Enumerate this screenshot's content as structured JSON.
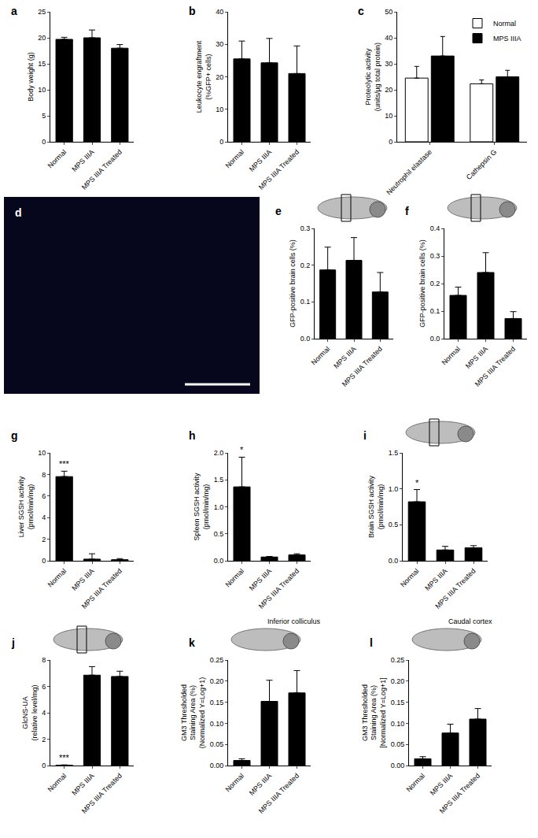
{
  "chart_data": [
    {
      "type": "bar",
      "title": "a",
      "categories": [
        "Normal",
        "MPS IIIA",
        "MPS IIIA Treated"
      ],
      "values": [
        19.7,
        20.0,
        18.0
      ],
      "errors": [
        0.4,
        1.5,
        0.7
      ],
      "color": "#000000",
      "y_label": "Body weight (g)",
      "ylim": [
        0,
        25
      ],
      "yticks": [
        0,
        5,
        10,
        15,
        20,
        25
      ],
      "grid": false
    },
    {
      "type": "bar",
      "title": "b",
      "categories": [
        "Normal",
        "MPS IIIA",
        "MPS IIIA Treated"
      ],
      "values": [
        25.5,
        24.3,
        21.0
      ],
      "errors": [
        5.5,
        7.5,
        8.5
      ],
      "color": "#000000",
      "y_label": "Leukocyte engraftment\n(%GFP+ cells)",
      "ylim": [
        0,
        40
      ],
      "yticks": [
        0,
        10,
        20,
        30,
        40
      ],
      "grid": false
    },
    {
      "type": "bar",
      "title": "c",
      "categories": [
        "Neutrophil elastase",
        "Cathepsin G"
      ],
      "series": [
        {
          "name": "Normal",
          "color": "#ffffff",
          "values": [
            24.5,
            22.3
          ],
          "errors": [
            4.5,
            1.5
          ]
        },
        {
          "name": "MPS IIIA",
          "color": "#000000",
          "values": [
            33.0,
            25.0
          ],
          "errors": [
            7.5,
            2.5
          ]
        }
      ],
      "y_label": "Proteolytic activity\n(units/µg total protein)",
      "ylim": [
        0,
        50
      ],
      "yticks": [
        0,
        10,
        20,
        30,
        40,
        50
      ],
      "legend": "top right",
      "grid": false
    },
    {
      "type": "image",
      "title": "d"
    },
    {
      "type": "bar",
      "title": "e",
      "categories": [
        "Normal",
        "MPS IIIA",
        "MPS IIIA Treated"
      ],
      "values": [
        0.187,
        0.213,
        0.127
      ],
      "errors": [
        0.062,
        0.062,
        0.053
      ],
      "color": "#000000",
      "y_label": "GFP-positive brain cells (%)",
      "ylim": [
        0,
        0.3
      ],
      "yticks": [
        {
          "value": 0,
          "label": "0.0"
        },
        0.1,
        0.2,
        0.3
      ],
      "grid": false
    },
    {
      "type": "bar",
      "title": "f",
      "categories": [
        "Normal",
        "MPS IIIA",
        "MPS IIIA Treated"
      ],
      "values": [
        0.157,
        0.24,
        0.073
      ],
      "errors": [
        0.03,
        0.072,
        0.025
      ],
      "color": "#000000",
      "y_label": "GFP-positive brain cells (%)",
      "ylim": [
        0,
        0.4
      ],
      "yticks": [
        {
          "value": 0,
          "label": "0.0"
        },
        0.1,
        0.2,
        0.3,
        0.4
      ],
      "grid": false
    },
    {
      "type": "bar",
      "title": "g",
      "categories": [
        "Normal",
        "MPS IIIA",
        "MPS IIIA Treated"
      ],
      "values": [
        7.8,
        0.15,
        0.1
      ],
      "errors": [
        0.5,
        0.5,
        0.1
      ],
      "color": "#000000",
      "y_label": "Liver SGSH activity\n(pmol/min/mg)",
      "ylim": [
        0,
        10
      ],
      "yticks": [
        0,
        2,
        4,
        6,
        8,
        10
      ],
      "annotations": [
        {
          "category": "Normal",
          "text": "***"
        }
      ],
      "grid": false
    },
    {
      "type": "bar",
      "title": "h",
      "categories": [
        "Normal",
        "MPS IIIA",
        "MPS IIIA Treated"
      ],
      "values": [
        1.37,
        0.07,
        0.11
      ],
      "errors": [
        0.55,
        0.01,
        0.02
      ],
      "color": "#000000",
      "y_label": "Spleen SGSH activity\n(pmol/min/mg)",
      "ylim": [
        0,
        2.0
      ],
      "yticks": [
        {
          "value": 0,
          "label": "0.0"
        },
        0.5,
        {
          "value": 1.0,
          "label": "1.0"
        },
        1.5,
        {
          "value": 2.0,
          "label": "2.0"
        }
      ],
      "annotations": [
        {
          "category": "Normal",
          "text": "*"
        }
      ],
      "grid": false
    },
    {
      "type": "bar",
      "title": "i",
      "categories": [
        "Normal",
        "MPS IIIA",
        "MPS IIIA Treated"
      ],
      "values": [
        0.82,
        0.15,
        0.18
      ],
      "errors": [
        0.17,
        0.05,
        0.03
      ],
      "color": "#000000",
      "y_label": "Brain SGSH activity\n(pmol/min/mg)",
      "ylim": [
        0,
        1.5
      ],
      "yticks": [
        {
          "value": 0,
          "label": "0.0"
        },
        0.5,
        {
          "value": 1.0,
          "label": "1.0"
        },
        1.5
      ],
      "annotations": [
        {
          "category": "Normal",
          "text": "*"
        }
      ],
      "grid": false
    },
    {
      "type": "bar",
      "title": "j",
      "categories": [
        "Normal",
        "MPS IIIA",
        "MPS IIIA Treated"
      ],
      "values": [
        0.03,
        6.85,
        6.75
      ],
      "errors": [
        0.02,
        0.65,
        0.4
      ],
      "color": "#000000",
      "y_label": "GlcNS-UA\n(relative level/mg)",
      "ylim": [
        0,
        8
      ],
      "yticks": [
        0,
        2,
        4,
        6,
        8
      ],
      "annotations": [
        {
          "category": "Normal",
          "text": "***"
        }
      ],
      "grid": false
    },
    {
      "type": "bar",
      "title": "k",
      "subtitle": "Inferior colliculus",
      "categories": [
        "Normal",
        "MPS IIIA",
        "MPS IIIA Treated"
      ],
      "values": [
        0.012,
        0.152,
        0.172
      ],
      "errors": [
        0.004,
        0.05,
        0.053
      ],
      "color": "#000000",
      "y_label": "GM3 Thresholded\nStaining Area (%)\n(Normalized Y=Log+1)",
      "ylim": [
        0,
        0.25
      ],
      "yticks": [
        {
          "value": 0,
          "label": "0.00"
        },
        0.05,
        {
          "value": 0.1,
          "label": "0.10"
        },
        0.15,
        {
          "value": 0.2,
          "label": "0.20"
        },
        0.25
      ],
      "grid": false
    },
    {
      "type": "bar",
      "title": "l",
      "subtitle": "Caudal cortex",
      "categories": [
        "Normal",
        "MPS IIIA",
        "MPS IIIA Treated"
      ],
      "values": [
        0.016,
        0.077,
        0.11
      ],
      "errors": [
        0.005,
        0.021,
        0.025
      ],
      "color": "#000000",
      "y_label": "GM3 Thresholded\nStaining Area (%)\n[Normalized Y=Log+1]",
      "ylim": [
        0,
        0.25
      ],
      "yticks": [
        {
          "value": 0,
          "label": "0.00"
        },
        0.05,
        {
          "value": 0.1,
          "label": "0.10"
        },
        0.15,
        {
          "value": 0.2,
          "label": "0.20"
        },
        0.25
      ],
      "grid": false
    }
  ]
}
